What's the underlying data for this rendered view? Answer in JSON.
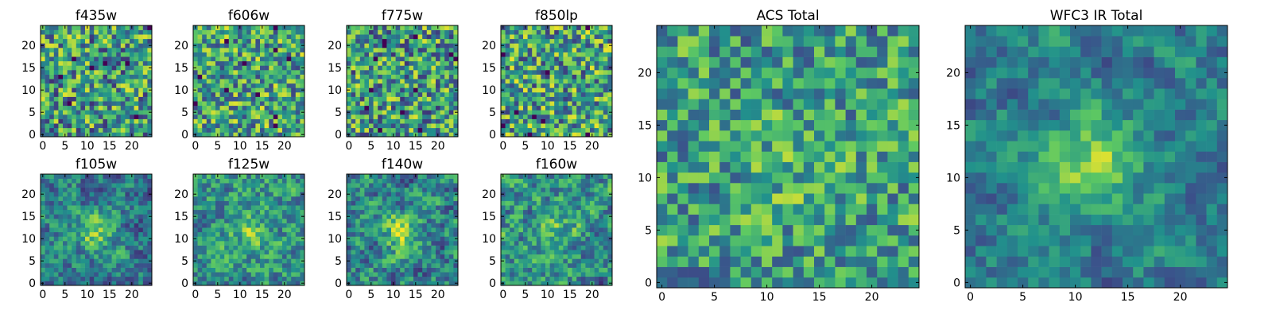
{
  "figure": {
    "background": "#ffffff",
    "colormap": "viridis",
    "colormap_stops": [
      "#440154",
      "#3b528b",
      "#21918c",
      "#5ec962",
      "#fde725"
    ]
  },
  "chart_data": [
    {
      "type": "heatmap",
      "title": "f435w",
      "grid_size": 25,
      "xlim": [
        0,
        24
      ],
      "ylim": [
        0,
        24
      ],
      "xticks": [
        0,
        5,
        10,
        15,
        20
      ],
      "yticks": [
        0,
        5,
        10,
        15,
        20
      ],
      "seed": 11,
      "contrast": 0.85,
      "blob": 0.0,
      "smooth": 0.05,
      "offset": 0.12
    },
    {
      "type": "heatmap",
      "title": "f606w",
      "grid_size": 25,
      "xlim": [
        0,
        24
      ],
      "ylim": [
        0,
        24
      ],
      "xticks": [
        0,
        5,
        10,
        15,
        20
      ],
      "yticks": [
        0,
        5,
        10,
        15,
        20
      ],
      "seed": 23,
      "contrast": 0.8,
      "blob": 0.0,
      "smooth": 0.05,
      "offset": 0.18
    },
    {
      "type": "heatmap",
      "title": "f775w",
      "grid_size": 25,
      "xlim": [
        0,
        24
      ],
      "ylim": [
        0,
        24
      ],
      "xticks": [
        0,
        5,
        10,
        15,
        20
      ],
      "yticks": [
        0,
        5,
        10,
        15,
        20
      ],
      "seed": 37,
      "contrast": 0.85,
      "blob": 0.0,
      "smooth": 0.05,
      "offset": 0.12
    },
    {
      "type": "heatmap",
      "title": "f850lp",
      "grid_size": 25,
      "xlim": [
        0,
        24
      ],
      "ylim": [
        0,
        24
      ],
      "xticks": [
        0,
        5,
        10,
        15,
        20
      ],
      "yticks": [
        0,
        5,
        10,
        15,
        20
      ],
      "seed": 41,
      "contrast": 0.85,
      "blob": 0.0,
      "smooth": 0.05,
      "offset": 0.14
    },
    {
      "type": "heatmap",
      "title": "f105w",
      "grid_size": 25,
      "xlim": [
        0,
        24
      ],
      "ylim": [
        0,
        24
      ],
      "xticks": [
        0,
        5,
        10,
        15,
        20
      ],
      "yticks": [
        0,
        5,
        10,
        15,
        20
      ],
      "seed": 53,
      "contrast": 0.75,
      "blob": 0.35,
      "smooth": 0.45,
      "offset": 0.05
    },
    {
      "type": "heatmap",
      "title": "f125w",
      "grid_size": 25,
      "xlim": [
        0,
        24
      ],
      "ylim": [
        0,
        24
      ],
      "xticks": [
        0,
        5,
        10,
        15,
        20
      ],
      "yticks": [
        0,
        5,
        10,
        15,
        20
      ],
      "seed": 67,
      "contrast": 0.8,
      "blob": 0.2,
      "smooth": 0.45,
      "offset": 0.12
    },
    {
      "type": "heatmap",
      "title": "f140w",
      "grid_size": 25,
      "xlim": [
        0,
        24
      ],
      "ylim": [
        0,
        24
      ],
      "xticks": [
        0,
        5,
        10,
        15,
        20
      ],
      "yticks": [
        0,
        5,
        10,
        15,
        20
      ],
      "seed": 71,
      "contrast": 0.85,
      "blob": 0.4,
      "smooth": 0.45,
      "offset": 0.02
    },
    {
      "type": "heatmap",
      "title": "f160w",
      "grid_size": 25,
      "xlim": [
        0,
        24
      ],
      "ylim": [
        0,
        24
      ],
      "xticks": [
        0,
        5,
        10,
        15,
        20
      ],
      "yticks": [
        0,
        5,
        10,
        15,
        20
      ],
      "seed": 83,
      "contrast": 0.85,
      "blob": 0.25,
      "smooth": 0.45,
      "offset": 0.08
    },
    {
      "type": "heatmap",
      "title": "ACS Total",
      "grid_size": 25,
      "xlim": [
        0,
        24
      ],
      "ylim": [
        0,
        24
      ],
      "xticks": [
        0,
        5,
        10,
        15,
        20
      ],
      "yticks": [
        0,
        5,
        10,
        15,
        20
      ],
      "seed": 97,
      "contrast": 0.7,
      "blob": 0.1,
      "smooth": 0.15,
      "offset": 0.2
    },
    {
      "type": "heatmap",
      "title": "WFC3 IR Total",
      "grid_size": 25,
      "xlim": [
        0,
        24
      ],
      "ylim": [
        0,
        24
      ],
      "xticks": [
        0,
        5,
        10,
        15,
        20
      ],
      "yticks": [
        0,
        5,
        10,
        15,
        20
      ],
      "seed": 101,
      "contrast": 0.65,
      "blob": 0.45,
      "smooth": 0.55,
      "offset": 0.1
    }
  ]
}
